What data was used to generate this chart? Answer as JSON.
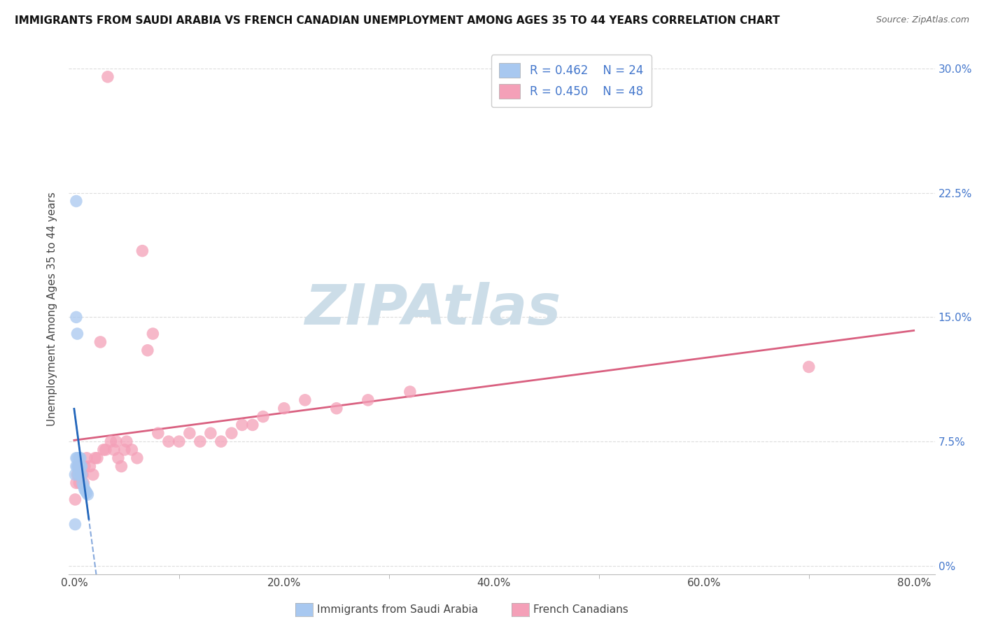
{
  "title": "IMMIGRANTS FROM SAUDI ARABIA VS FRENCH CANADIAN UNEMPLOYMENT AMONG AGES 35 TO 44 YEARS CORRELATION CHART",
  "source": "Source: ZipAtlas.com",
  "ylabel": "Unemployment Among Ages 35 to 44 years",
  "label1": "Immigrants from Saudi Arabia",
  "label2": "French Canadians",
  "color1": "#a8c8f0",
  "color2": "#f4a0b8",
  "trendline1_solid_color": "#2266bb",
  "trendline1_dash_color": "#88aadd",
  "trendline2_color": "#d96080",
  "watermark_text": "ZIPAtlas",
  "watermark_color": "#ccdde8",
  "right_tick_color": "#4477cc",
  "ytick_vals": [
    0.0,
    0.075,
    0.15,
    0.225,
    0.3
  ],
  "ytick_labels_right": [
    "0%",
    "7.5%",
    "15.0%",
    "22.5%",
    "30.0%"
  ],
  "xtick_vals": [
    0.0,
    0.2,
    0.4,
    0.6,
    0.8
  ],
  "xtick_labels": [
    "0.0%",
    "20.0%",
    "40.0%",
    "60.0%",
    "80.0%"
  ],
  "saudi_x": [
    0.001,
    0.002,
    0.002,
    0.002,
    0.003,
    0.003,
    0.003,
    0.004,
    0.004,
    0.005,
    0.005,
    0.005,
    0.006,
    0.006,
    0.007,
    0.007,
    0.008,
    0.009,
    0.01,
    0.011,
    0.012,
    0.013,
    0.002,
    0.001
  ],
  "saudi_y": [
    0.055,
    0.06,
    0.065,
    0.15,
    0.06,
    0.065,
    0.14,
    0.055,
    0.06,
    0.065,
    0.06,
    0.055,
    0.06,
    0.065,
    0.06,
    0.055,
    0.05,
    0.048,
    0.046,
    0.045,
    0.044,
    0.043,
    0.22,
    0.025
  ],
  "french_x": [
    0.001,
    0.002,
    0.003,
    0.004,
    0.005,
    0.006,
    0.007,
    0.008,
    0.009,
    0.01,
    0.012,
    0.015,
    0.018,
    0.02,
    0.022,
    0.025,
    0.028,
    0.03,
    0.032,
    0.035,
    0.038,
    0.04,
    0.042,
    0.045,
    0.048,
    0.05,
    0.055,
    0.06,
    0.065,
    0.07,
    0.075,
    0.08,
    0.09,
    0.1,
    0.11,
    0.12,
    0.13,
    0.14,
    0.15,
    0.16,
    0.17,
    0.18,
    0.2,
    0.22,
    0.25,
    0.28,
    0.32,
    0.7
  ],
  "french_y": [
    0.04,
    0.05,
    0.055,
    0.06,
    0.05,
    0.055,
    0.055,
    0.055,
    0.05,
    0.06,
    0.065,
    0.06,
    0.055,
    0.065,
    0.065,
    0.135,
    0.07,
    0.07,
    0.295,
    0.075,
    0.07,
    0.075,
    0.065,
    0.06,
    0.07,
    0.075,
    0.07,
    0.065,
    0.19,
    0.13,
    0.14,
    0.08,
    0.075,
    0.075,
    0.08,
    0.075,
    0.08,
    0.075,
    0.08,
    0.085,
    0.085,
    0.09,
    0.095,
    0.1,
    0.095,
    0.1,
    0.105,
    0.12
  ],
  "xlim": [
    -0.005,
    0.82
  ],
  "ylim": [
    -0.005,
    0.315
  ]
}
